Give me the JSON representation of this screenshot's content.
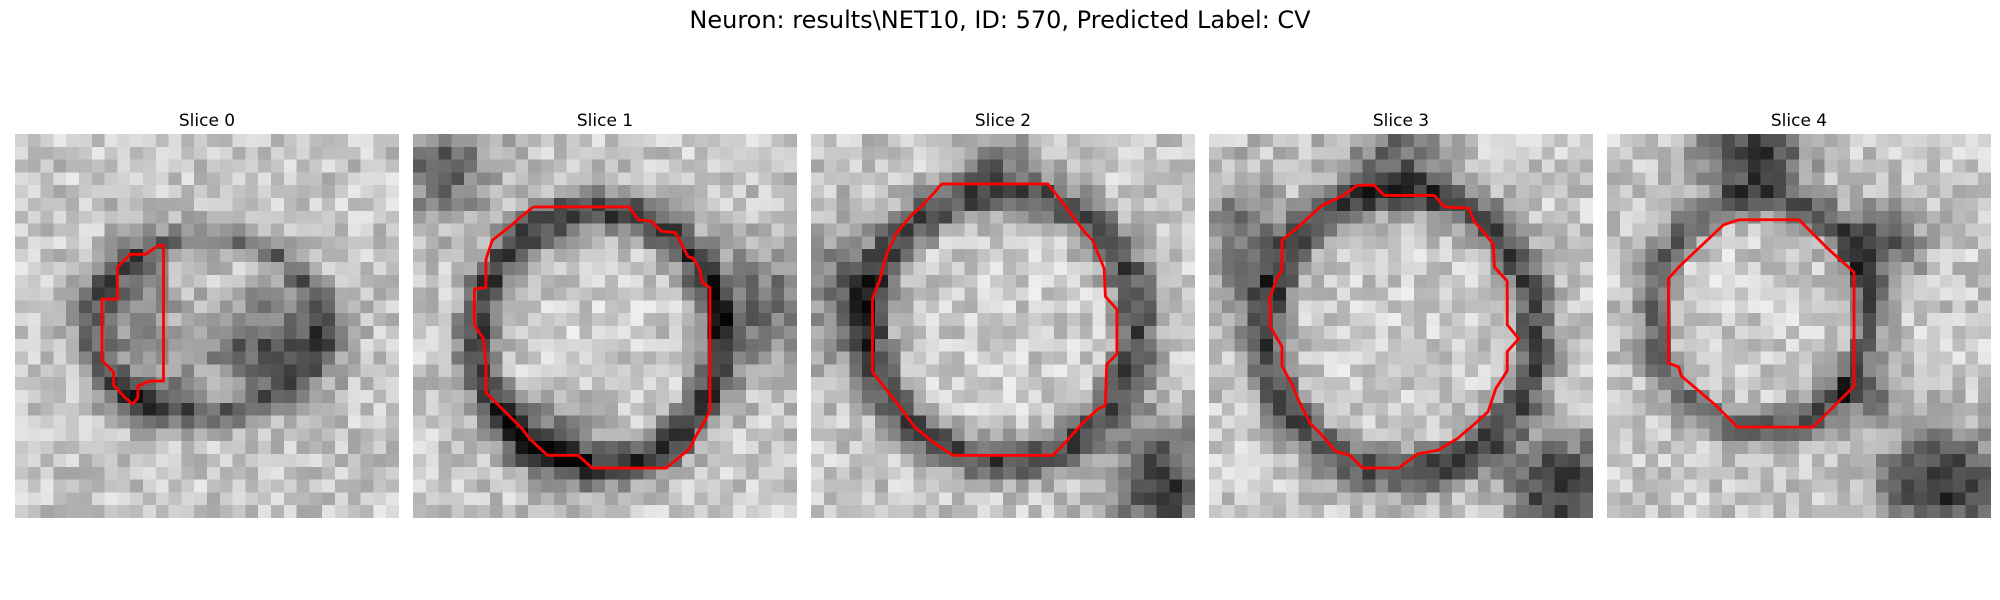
{
  "figure": {
    "title": "Neuron: results\\NET10, ID: 570, Predicted Label: CV"
  },
  "panels": [
    {
      "title": "Slice 0"
    },
    {
      "title": "Slice 1"
    },
    {
      "title": "Slice 2"
    },
    {
      "title": "Slice 3"
    },
    {
      "title": "Slice 4"
    }
  ],
  "colors": {
    "contour": "#ff0000",
    "background": "#ffffff",
    "colormap": "gray"
  }
}
